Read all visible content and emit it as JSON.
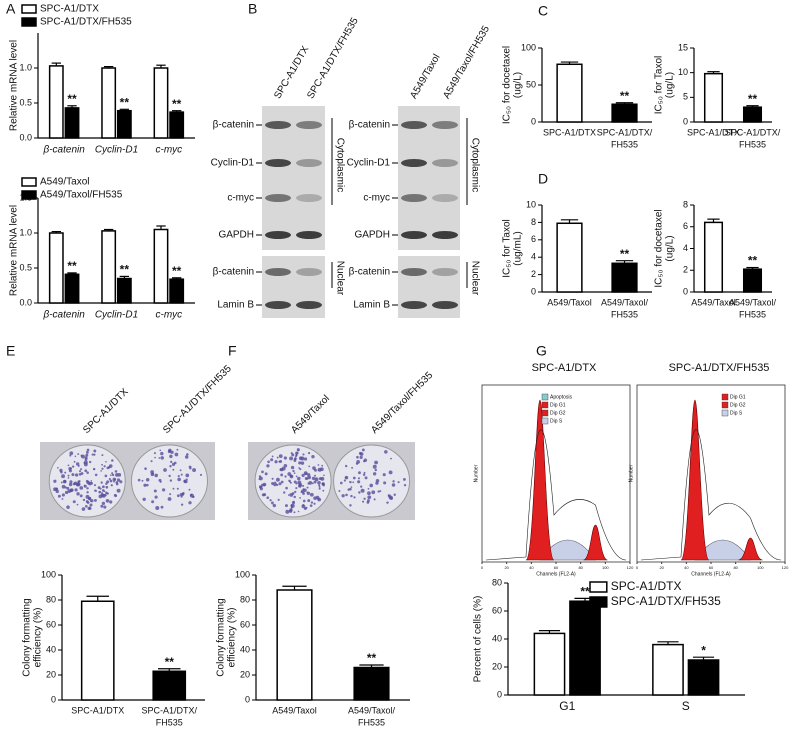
{
  "panel_labels": [
    "A",
    "B",
    "C",
    "D",
    "E",
    "F",
    "G"
  ],
  "chart_data": [
    {
      "type": "bar",
      "ylabel": [
        "Relative mRNA level"
      ],
      "categories": [
        "β-catenin",
        "Cyclin-D1",
        "c-myc"
      ],
      "series": [
        {
          "name": "SPC-A1/DTX",
          "color": "#ffffff",
          "values": [
            1.03,
            1.0,
            1.0
          ],
          "errors": [
            0.04,
            0.02,
            0.04
          ],
          "annotations": [
            null,
            null,
            null
          ]
        },
        {
          "name": "SPC-A1/DTX/FH535",
          "color": "#000000",
          "values": [
            0.43,
            0.39,
            0.37
          ],
          "errors": [
            0.03,
            0.02,
            0.02
          ],
          "annotations": [
            "**",
            "**",
            "**"
          ]
        }
      ],
      "ylim": [
        0,
        1.5
      ],
      "yticks": [
        {
          "value": 0,
          "label": "0.0"
        },
        {
          "value": 0.5,
          "label": "0.5"
        },
        {
          "value": 1,
          "label": "1.0"
        }
      ]
    },
    {
      "type": "bar",
      "ylabel": [
        "Relative mRNA level"
      ],
      "categories": [
        "β-catenin",
        "Cyclin-D1",
        "c-myc"
      ],
      "series": [
        {
          "name": "A549/Taxol",
          "color": "#ffffff",
          "values": [
            1.0,
            1.03,
            1.05
          ],
          "errors": [
            0.02,
            0.02,
            0.05
          ],
          "annotations": [
            null,
            null,
            null
          ]
        },
        {
          "name": "A549/Taxol/FH535",
          "color": "#000000",
          "values": [
            0.41,
            0.35,
            0.34
          ],
          "errors": [
            0.02,
            0.03,
            0.02
          ],
          "annotations": [
            "**",
            "**",
            "**"
          ]
        }
      ],
      "ylim": [
        0,
        1.5
      ],
      "yticks": [
        {
          "value": 0,
          "label": "0.0"
        },
        {
          "value": 0.5,
          "label": "0.5"
        },
        {
          "value": 1,
          "label": "1.0"
        },
        {
          "value": 1.5,
          "label": "1.5"
        }
      ]
    },
    {
      "type": "bar",
      "ylabel": [
        "IC₅₀ for docetaxel",
        "(ug/L)"
      ],
      "categories": [
        [
          "SPC-A1/DTX"
        ],
        [
          "SPC-A1/DTX/",
          "FH535"
        ]
      ],
      "values": [
        78,
        24
      ],
      "errors": [
        3,
        2
      ],
      "colors": [
        "#ffffff",
        "#000000"
      ],
      "annotations": [
        null,
        "**"
      ],
      "ylim": [
        0,
        100
      ],
      "yticks": [
        0,
        50,
        100
      ]
    },
    {
      "type": "bar",
      "ylabel": [
        "IC₅₀ for Taxol",
        "(ug/L)"
      ],
      "categories": [
        [
          "SPC-A1/DTX"
        ],
        [
          "SPC-A1/DTX/",
          "FH535"
        ]
      ],
      "values": [
        9.8,
        3.0
      ],
      "errors": [
        0.4,
        0.3
      ],
      "colors": [
        "#ffffff",
        "#000000"
      ],
      "annotations": [
        null,
        "**"
      ],
      "ylim": [
        0,
        15
      ],
      "yticks": [
        0,
        5,
        10,
        15
      ]
    },
    {
      "type": "bar",
      "ylabel": [
        "IC₅₀ for Taxol",
        "(ug/mL)"
      ],
      "categories": [
        [
          "A549/Taxol"
        ],
        [
          "A549/Taxol/",
          "FH535"
        ]
      ],
      "values": [
        7.9,
        3.3
      ],
      "errors": [
        0.4,
        0.3
      ],
      "colors": [
        "#ffffff",
        "#000000"
      ],
      "annotations": [
        null,
        "**"
      ],
      "ylim": [
        0,
        10
      ],
      "yticks": [
        0,
        2,
        4,
        6,
        8,
        10
      ]
    },
    {
      "type": "bar",
      "ylabel": [
        "IC₅₀ for docetaxel",
        "(ug/L)"
      ],
      "categories": [
        [
          "A549/Taxol"
        ],
        [
          "A549/Taxol/",
          "FH535"
        ]
      ],
      "values": [
        6.4,
        2.1
      ],
      "errors": [
        0.3,
        0.15
      ],
      "colors": [
        "#ffffff",
        "#000000"
      ],
      "annotations": [
        null,
        "**"
      ],
      "ylim": [
        0,
        8
      ],
      "yticks": [
        0,
        2,
        4,
        6,
        8
      ]
    },
    {
      "type": "bar",
      "ylabel": [
        "Colony formatting",
        "efficiency (%)"
      ],
      "categories": [
        [
          "SPC-A1/DTX"
        ],
        [
          "SPC-A1/DTX/",
          "FH535"
        ]
      ],
      "values": [
        79,
        23
      ],
      "errors": [
        4,
        2
      ],
      "colors": [
        "#ffffff",
        "#000000"
      ],
      "annotations": [
        null,
        "**"
      ],
      "ylim": [
        0,
        100
      ],
      "yticks": [
        0,
        20,
        40,
        60,
        80,
        100
      ]
    },
    {
      "type": "bar",
      "ylabel": [
        "Colony formatting",
        "efficiency (%)"
      ],
      "categories": [
        [
          "A549/Taxol"
        ],
        [
          "A549/Taxol/",
          "FH535"
        ]
      ],
      "values": [
        88,
        26
      ],
      "errors": [
        3,
        2
      ],
      "colors": [
        "#ffffff",
        "#000000"
      ],
      "annotations": [
        null,
        "**"
      ],
      "ylim": [
        0,
        100
      ],
      "yticks": [
        0,
        20,
        40,
        60,
        80,
        100
      ]
    },
    {
      "type": "bar",
      "ylabel": [
        "Percent of cells (%)"
      ],
      "categories": [
        "G1",
        "S"
      ],
      "series": [
        {
          "name": "SPC-A1/DTX",
          "color": "#ffffff",
          "values": [
            44,
            36
          ],
          "errors": [
            2,
            2
          ],
          "annotations": [
            null,
            null
          ]
        },
        {
          "name": "SPC-A1/DTX/FH535",
          "color": "#000000",
          "values": [
            67,
            25
          ],
          "errors": [
            2,
            2
          ],
          "annotations": [
            "**",
            "*"
          ]
        }
      ],
      "ylim": [
        0,
        80
      ],
      "yticks": [
        0,
        20,
        40,
        60,
        80
      ]
    }
  ],
  "blots": {
    "groups": [
      {
        "columns": [
          "SPC-A1/DTX",
          "SPC-A1/DTX/FH535"
        ],
        "rows": [
          "β-catenin",
          "Cyclin-D1",
          "c-myc",
          "GAPDH",
          "β-catenin",
          "Lamin B"
        ]
      },
      {
        "columns": [
          "A549/Taxol",
          "A549/Taxol/FH535"
        ],
        "rows": [
          "β-catenin",
          "Cyclin-D1",
          "c-myc",
          "GAPDH",
          "β-catenin",
          "Lamin B"
        ]
      }
    ],
    "fractions": [
      "Cytoplasmic",
      "Nuclear"
    ]
  },
  "colonies": [
    {
      "columns": [
        "SPC-A1/DTX",
        "SPC-A1/DTX/FH535"
      ]
    },
    {
      "columns": [
        "A549/Taxol",
        "A549/Taxol/FH535"
      ]
    }
  ],
  "flow": {
    "xlabel": "Channels (FL2-A)",
    "ylabel": "Number",
    "xticks": [
      0,
      20,
      40,
      60,
      80,
      100,
      120
    ],
    "plots": [
      {
        "title": "SPC-A1/DTX",
        "legend": [
          "Apoptosis",
          "Dip G1",
          "Dip G2",
          "Dip S"
        ]
      },
      {
        "title": "SPC-A1/DTX/FH535",
        "legend": [
          "Dip G1",
          "Dip G2",
          "Dip S"
        ]
      }
    ]
  }
}
